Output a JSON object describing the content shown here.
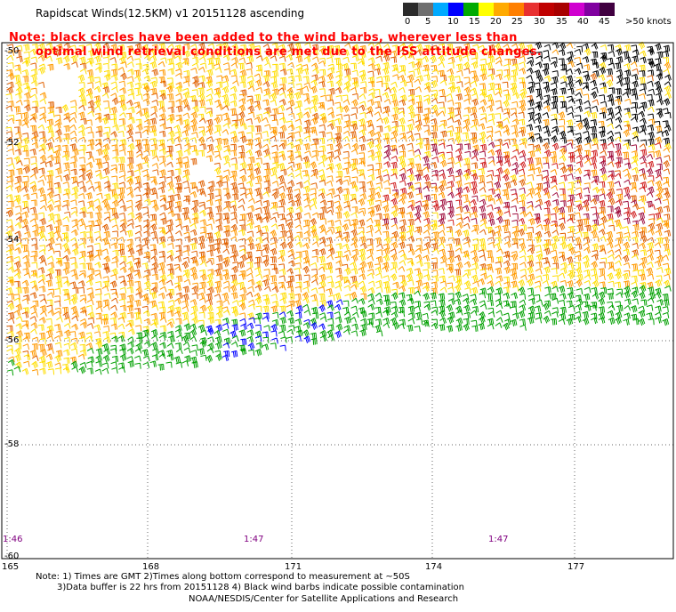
{
  "title": "Rapidscat Winds(12.5KM) v1 20151128 ascending",
  "notice": {
    "line1": "Note: black circles have been added to the wind barbs, wherever less than",
    "line2": "optimal wind retrieval conditions are met due to the ISS attitude changes."
  },
  "legend": {
    "colors": [
      "#2b2b2b",
      "#6f6f6f",
      "#00aaff",
      "#0000ff",
      "#00aa00",
      "#ffff00",
      "#ffaa00",
      "#ff7f00",
      "#e83030",
      "#c00000",
      "#a80000",
      "#d000d0",
      "#8000a0",
      "#400040"
    ],
    "labels": [
      "0",
      "5",
      "10",
      "15",
      "20",
      "25",
      "30",
      "35",
      "40",
      "45",
      ">50 knots"
    ]
  },
  "axes": {
    "lat_labels": [
      "-50",
      "-52",
      "-54",
      "-56",
      "-58",
      "-60"
    ],
    "lon_labels": [
      "165",
      "168",
      "171",
      "174",
      "177"
    ]
  },
  "times": [
    "1:46",
    "1:47",
    "1:47"
  ],
  "footer": {
    "line1": "Note: 1) Times are GMT 2)Times along bottom correspond to measurement at ~50S",
    "line2": "3)Data buffer is 22 hrs from 20151128 4) Black wind barbs indicate possible contamination",
    "credit": "NOAA/NESDIS/Center for Satellite Applications and Research"
  }
}
